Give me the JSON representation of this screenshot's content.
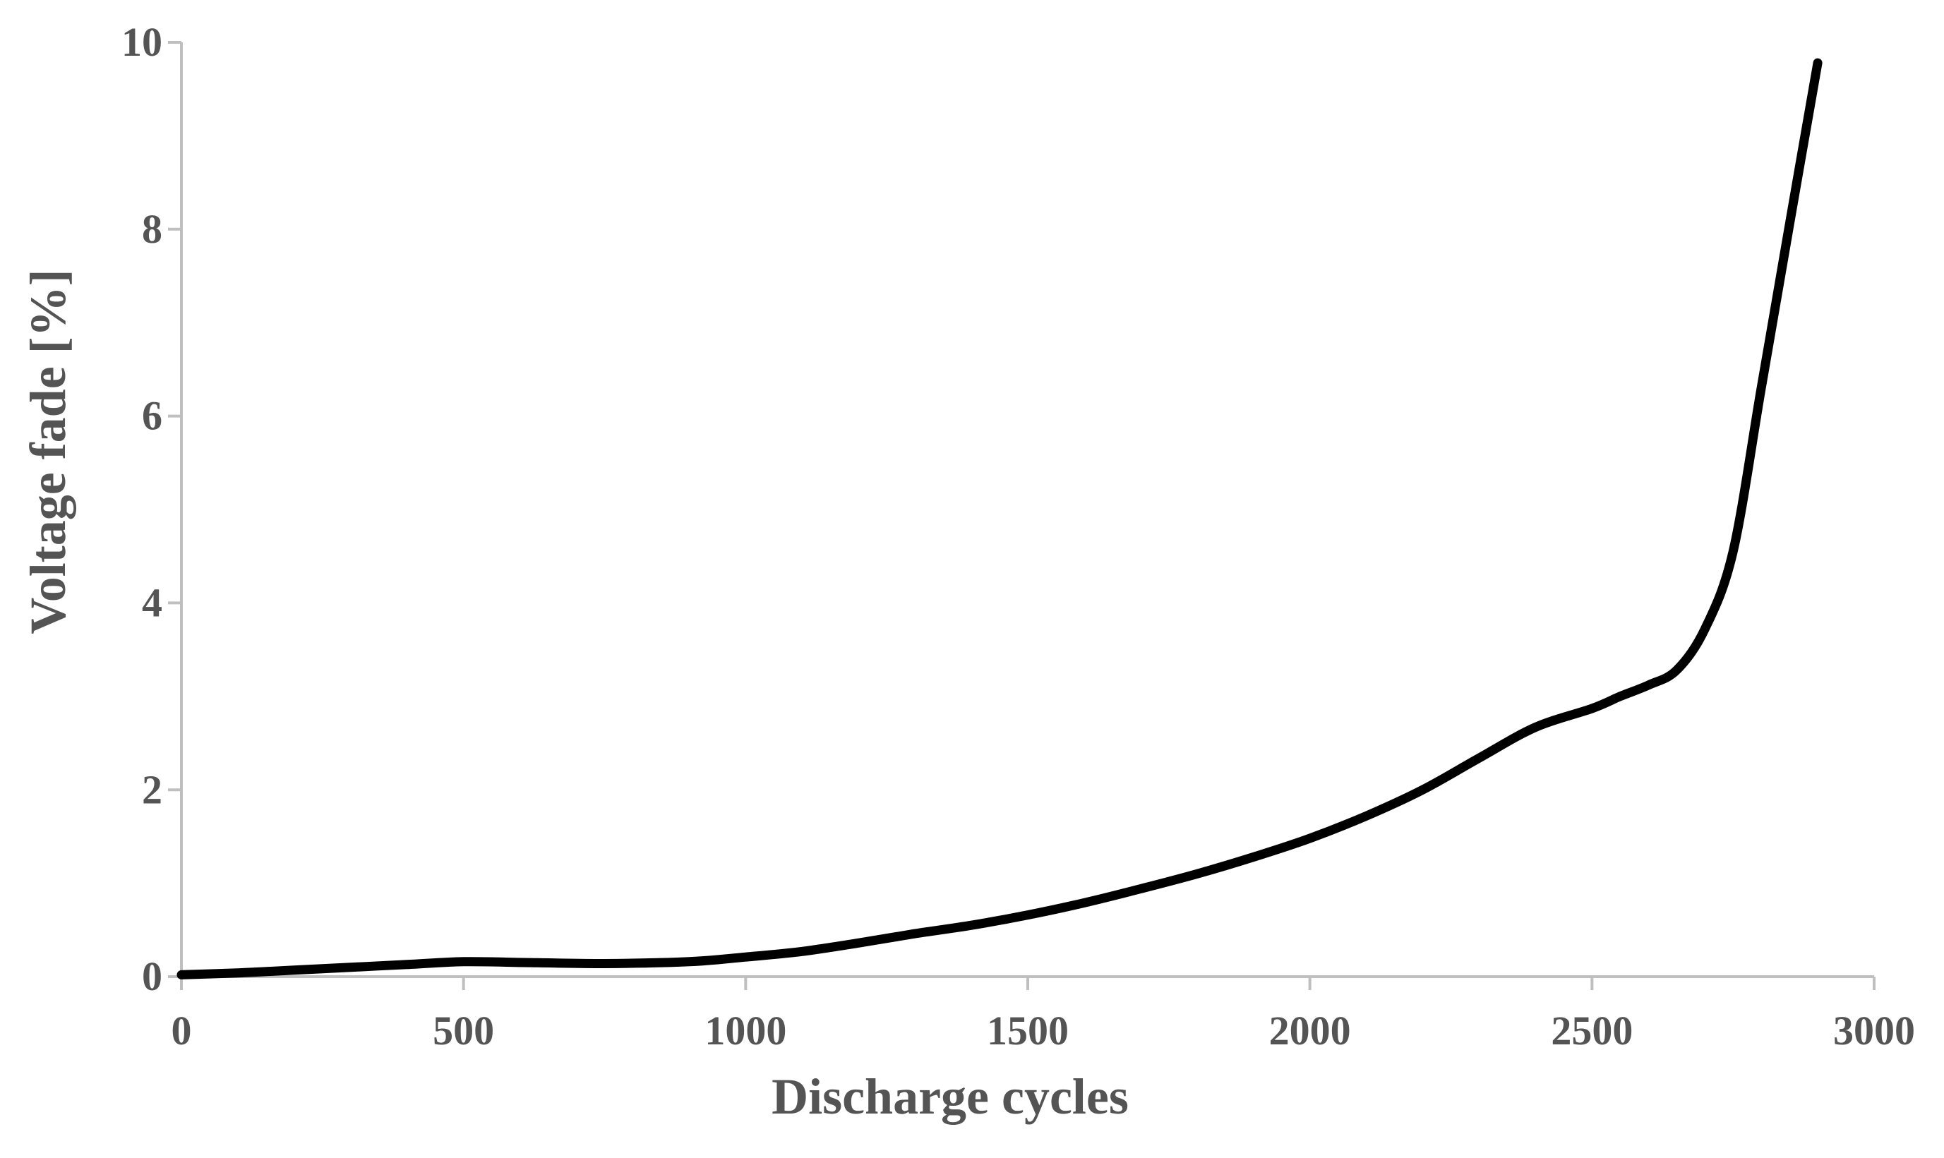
{
  "colors": {
    "background": "#ffffff",
    "axis_line": "#bfbfbf",
    "tick_text": "#545454",
    "title_text": "#545454",
    "series_line": "#000000"
  },
  "chart_data": {
    "type": "line",
    "title": "",
    "xlabel": "Discharge cycles",
    "ylabel": "Voltage fade [%]",
    "xlim": [
      0,
      3000
    ],
    "ylim": [
      0,
      10
    ],
    "x_ticks": [
      0,
      500,
      1000,
      1500,
      2000,
      2500,
      3000
    ],
    "y_ticks": [
      0,
      2,
      4,
      6,
      8,
      10
    ],
    "grid": false,
    "legend_position": "none",
    "line_width": 13,
    "series": [
      {
        "name": "Voltage fade",
        "color": "#000000",
        "x": [
          0,
          100,
          200,
          300,
          400,
          500,
          620,
          750,
          900,
          1000,
          1100,
          1200,
          1300,
          1400,
          1500,
          1600,
          1700,
          1800,
          1900,
          2000,
          2100,
          2200,
          2300,
          2400,
          2500,
          2550,
          2600,
          2650,
          2700,
          2750,
          2800,
          2850,
          2900
        ],
        "y": [
          0.02,
          0.04,
          0.07,
          0.1,
          0.13,
          0.16,
          0.15,
          0.14,
          0.16,
          0.21,
          0.27,
          0.36,
          0.46,
          0.55,
          0.66,
          0.79,
          0.94,
          1.1,
          1.28,
          1.48,
          1.72,
          2.0,
          2.34,
          2.67,
          2.87,
          3.0,
          3.12,
          3.28,
          3.72,
          4.55,
          6.3,
          8.05,
          9.78
        ]
      }
    ]
  }
}
